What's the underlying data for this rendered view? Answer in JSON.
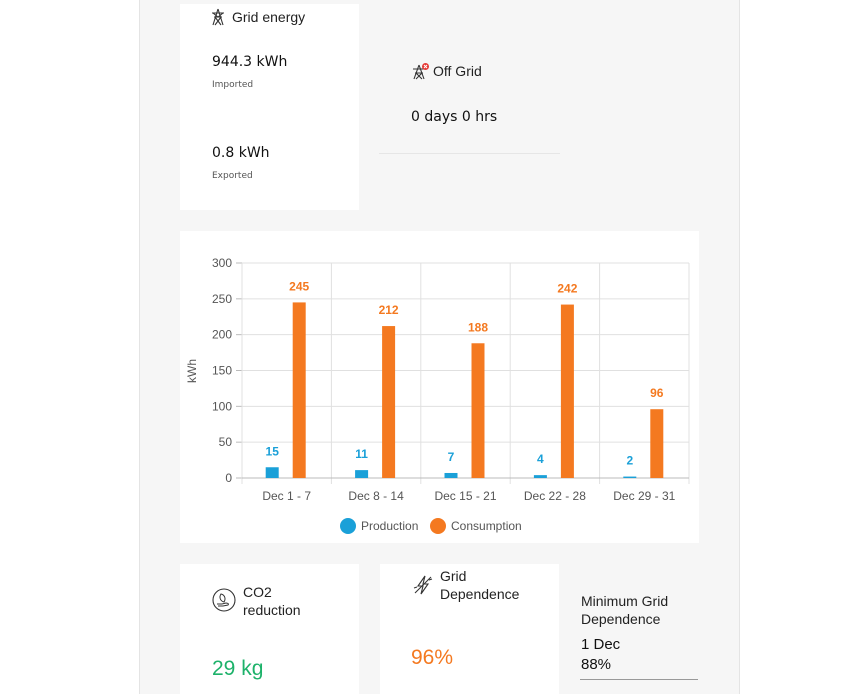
{
  "grid_energy": {
    "title": "Grid energy",
    "imported_value": "944.3 kWh",
    "imported_label": "Imported",
    "exported_value": "0.8 kWh",
    "exported_label": "Exported",
    "icon": "transmission-tower-icon"
  },
  "off_grid": {
    "title": "Off Grid",
    "value": "0 days 0 hrs",
    "icon": "transmission-tower-off-icon"
  },
  "chart_data": {
    "type": "bar",
    "categories": [
      "Dec 1 - 7",
      "Dec 8 - 14",
      "Dec 15 - 21",
      "Dec 22 - 28",
      "Dec 29 - 31"
    ],
    "series": [
      {
        "name": "Production",
        "values": [
          15,
          11,
          7,
          4,
          2
        ],
        "color": "#1aa0d8"
      },
      {
        "name": "Consumption",
        "values": [
          245,
          212,
          188,
          242,
          96
        ],
        "color": "#f47920"
      }
    ],
    "title": "",
    "xlabel": "",
    "ylabel": "kWh",
    "ylim": [
      0,
      300
    ],
    "yticks": [
      "0",
      "50",
      "100",
      "150",
      "200",
      "250",
      "300"
    ],
    "grid": true,
    "legend": "bottom"
  },
  "co2": {
    "title_line1": "CO2",
    "title_line2": "reduction",
    "value": "29 kg",
    "value_color": "#1db26a",
    "icon": "leaf-hand-icon"
  },
  "grid_dependence": {
    "title_line1": "Grid",
    "title_line2": "Dependence",
    "value": "96%",
    "value_color": "#f47920",
    "icon": "lightning-off-icon"
  },
  "min_grid_dependence": {
    "title_line1": "Minimum Grid",
    "title_line2": "Dependence",
    "date": "1 Dec",
    "value": "88%"
  }
}
